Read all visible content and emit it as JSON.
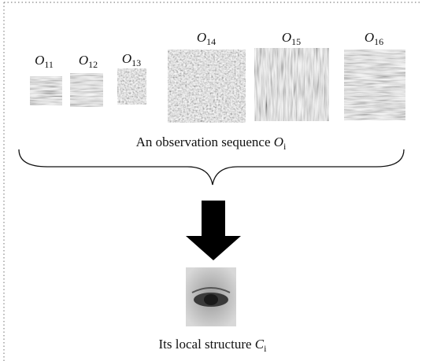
{
  "observations": [
    {
      "symbol": "O",
      "subscript": "11"
    },
    {
      "symbol": "O",
      "subscript": "12"
    },
    {
      "symbol": "O",
      "subscript": "13"
    },
    {
      "symbol": "O",
      "subscript": "14"
    },
    {
      "symbol": "O",
      "subscript": "15"
    },
    {
      "symbol": "O",
      "subscript": "16"
    }
  ],
  "sequence_caption": {
    "text": "An observation sequence",
    "symbol": "O",
    "subscript": "i"
  },
  "structure_caption": {
    "text": "Its local structure",
    "symbol": "C",
    "subscript": "i"
  }
}
